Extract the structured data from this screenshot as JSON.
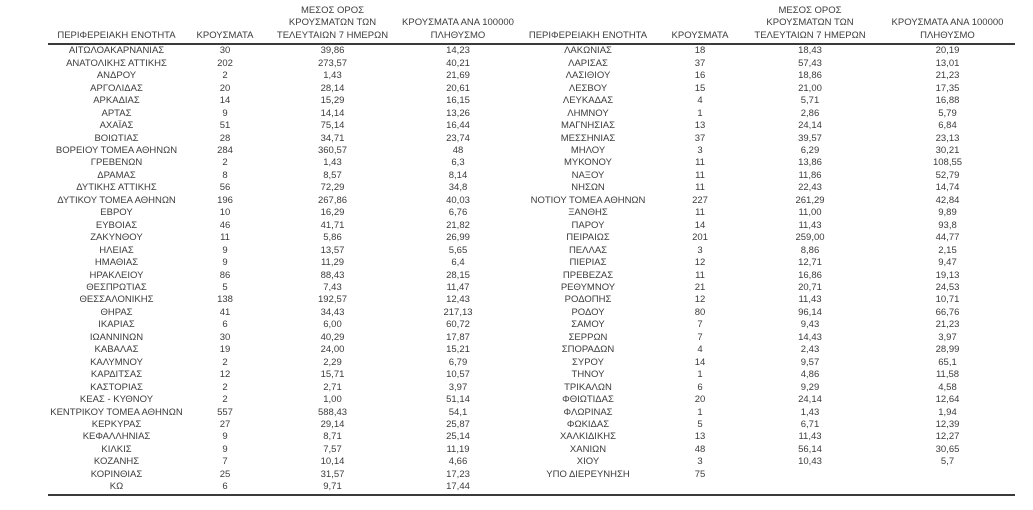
{
  "table": {
    "headers": {
      "region": "ΠΕΡΙΦΕΡΕΙΑΚΗ ΕΝΟΤΗΤΑ",
      "cases": "ΚΡΟΥΣΜΑΤΑ",
      "avg7_lines": [
        "ΜΕΣΟΣ ΟΡΟΣ",
        "ΚΡΟΥΣΜΑΤΩΝ ΤΩΝ",
        "ΤΕΛΕΥΤΑΙΩΝ 7 ΗΜΕΡΩΝ"
      ],
      "per100k_lines": [
        "ΚΡΟΥΣΜΑΤΑ ΑΝΑ 100000",
        "ΠΛΗΘΥΣΜΟ"
      ]
    },
    "left_rows": [
      [
        "ΑΙΤΩΛΟΑΚΑΡΝΑΝΙΑΣ",
        "30",
        "39,86",
        "14,23"
      ],
      [
        "ΑΝΑΤΟΛΙΚΗΣ ΑΤΤΙΚΗΣ",
        "202",
        "273,57",
        "40,21"
      ],
      [
        "ΑΝΔΡΟΥ",
        "2",
        "1,43",
        "21,69"
      ],
      [
        "ΑΡΓΟΛΙΔΑΣ",
        "20",
        "28,14",
        "20,61"
      ],
      [
        "ΑΡΚΑΔΙΑΣ",
        "14",
        "15,29",
        "16,15"
      ],
      [
        "ΑΡΤΑΣ",
        "9",
        "14,14",
        "13,26"
      ],
      [
        "ΑΧΑΪΑΣ",
        "51",
        "75,14",
        "16,44"
      ],
      [
        "ΒΟΙΩΤΙΑΣ",
        "28",
        "34,71",
        "23,74"
      ],
      [
        "ΒΟΡΕΙΟΥ ΤΟΜΕΑ ΑΘΗΝΩΝ",
        "284",
        "360,57",
        "48"
      ],
      [
        "ΓΡΕΒΕΝΩΝ",
        "2",
        "1,43",
        "6,3"
      ],
      [
        "ΔΡΑΜΑΣ",
        "8",
        "8,57",
        "8,14"
      ],
      [
        "ΔΥΤΙΚΗΣ ΑΤΤΙΚΗΣ",
        "56",
        "72,29",
        "34,8"
      ],
      [
        "ΔΥΤΙΚΟΥ ΤΟΜΕΑ ΑΘΗΝΩΝ",
        "196",
        "267,86",
        "40,03"
      ],
      [
        "ΕΒΡΟΥ",
        "10",
        "16,29",
        "6,76"
      ],
      [
        "ΕΥΒΟΙΑΣ",
        "46",
        "41,71",
        "21,82"
      ],
      [
        "ΖΑΚΥΝΘΟΥ",
        "11",
        "5,86",
        "26,99"
      ],
      [
        "ΗΛΕΙΑΣ",
        "9",
        "13,57",
        "5,65"
      ],
      [
        "ΗΜΑΘΙΑΣ",
        "9",
        "11,29",
        "6,4"
      ],
      [
        "ΗΡΑΚΛΕΙΟΥ",
        "86",
        "88,43",
        "28,15"
      ],
      [
        "ΘΕΣΠΡΩΤΙΑΣ",
        "5",
        "7,43",
        "11,47"
      ],
      [
        "ΘΕΣΣΑΛΟΝΙΚΗΣ",
        "138",
        "192,57",
        "12,43"
      ],
      [
        "ΘΗΡΑΣ",
        "41",
        "34,43",
        "217,13"
      ],
      [
        "ΙΚΑΡΙΑΣ",
        "6",
        "6,00",
        "60,72"
      ],
      [
        "ΙΩΑΝΝΙΝΩΝ",
        "30",
        "40,29",
        "17,87"
      ],
      [
        "ΚΑΒΑΛΑΣ",
        "19",
        "24,00",
        "15,21"
      ],
      [
        "ΚΑΛΥΜΝΟΥ",
        "2",
        "2,29",
        "6,79"
      ],
      [
        "ΚΑΡΔΙΤΣΑΣ",
        "12",
        "15,71",
        "10,57"
      ],
      [
        "ΚΑΣΤΟΡΙΑΣ",
        "2",
        "2,71",
        "3,97"
      ],
      [
        "ΚΕΑΣ - ΚΥΘΝΟΥ",
        "2",
        "1,00",
        "51,14"
      ],
      [
        "ΚΕΝΤΡΙΚΟΥ ΤΟΜΕΑ ΑΘΗΝΩΝ",
        "557",
        "588,43",
        "54,1"
      ],
      [
        "ΚΕΡΚΥΡΑΣ",
        "27",
        "29,14",
        "25,87"
      ],
      [
        "ΚΕΦΑΛΛΗΝΙΑΣ",
        "9",
        "8,71",
        "25,14"
      ],
      [
        "ΚΙΛΚΙΣ",
        "9",
        "7,57",
        "11,19"
      ],
      [
        "ΚΟΖΑΝΗΣ",
        "7",
        "10,14",
        "4,66"
      ],
      [
        "ΚΟΡΙΝΘΙΑΣ",
        "25",
        "31,57",
        "17,23"
      ],
      [
        "ΚΩ",
        "6",
        "9,71",
        "17,44"
      ]
    ],
    "right_rows": [
      [
        "ΛΑΚΩΝΙΑΣ",
        "18",
        "18,43",
        "20,19"
      ],
      [
        "ΛΑΡΙΣΑΣ",
        "37",
        "57,43",
        "13,01"
      ],
      [
        "ΛΑΣΙΘΙΟΥ",
        "16",
        "18,86",
        "21,23"
      ],
      [
        "ΛΕΣΒΟΥ",
        "15",
        "21,00",
        "17,35"
      ],
      [
        "ΛΕΥΚΑΔΑΣ",
        "4",
        "5,71",
        "16,88"
      ],
      [
        "ΛΗΜΝΟΥ",
        "1",
        "2,86",
        "5,79"
      ],
      [
        "ΜΑΓΝΗΣΙΑΣ",
        "13",
        "24,14",
        "6,84"
      ],
      [
        "ΜΕΣΣΗΝΙΑΣ",
        "37",
        "39,57",
        "23,13"
      ],
      [
        "ΜΗΛΟΥ",
        "3",
        "6,29",
        "30,21"
      ],
      [
        "ΜΥΚΟΝΟΥ",
        "11",
        "13,86",
        "108,55"
      ],
      [
        "ΝΑΞΟΥ",
        "11",
        "11,86",
        "52,79"
      ],
      [
        "ΝΗΣΩΝ",
        "11",
        "22,43",
        "14,74"
      ],
      [
        "ΝΟΤΙΟΥ ΤΟΜΕΑ ΑΘΗΝΩΝ",
        "227",
        "261,29",
        "42,84"
      ],
      [
        "ΞΑΝΘΗΣ",
        "11",
        "11,00",
        "9,89"
      ],
      [
        "ΠΑΡΟΥ",
        "14",
        "11,43",
        "93,8"
      ],
      [
        "ΠΕΙΡΑΙΩΣ",
        "201",
        "259,00",
        "44,77"
      ],
      [
        "ΠΕΛΛΑΣ",
        "3",
        "8,86",
        "2,15"
      ],
      [
        "ΠΙΕΡΙΑΣ",
        "12",
        "12,71",
        "9,47"
      ],
      [
        "ΠΡΕΒΕΖΑΣ",
        "11",
        "16,86",
        "19,13"
      ],
      [
        "ΡΕΘΥΜΝΟΥ",
        "21",
        "20,71",
        "24,53"
      ],
      [
        "ΡΟΔΟΠΗΣ",
        "12",
        "11,43",
        "10,71"
      ],
      [
        "ΡΟΔΟΥ",
        "80",
        "96,14",
        "66,76"
      ],
      [
        "ΣΑΜΟΥ",
        "7",
        "9,43",
        "21,23"
      ],
      [
        "ΣΕΡΡΩΝ",
        "7",
        "14,43",
        "3,97"
      ],
      [
        "ΣΠΟΡΑΔΩΝ",
        "4",
        "2,43",
        "28,99"
      ],
      [
        "ΣΥΡΟΥ",
        "14",
        "9,57",
        "65,1"
      ],
      [
        "ΤΗΝΟΥ",
        "1",
        "4,86",
        "11,58"
      ],
      [
        "ΤΡΙΚΑΛΩΝ",
        "6",
        "9,29",
        "4,58"
      ],
      [
        "ΦΘΙΩΤΙΔΑΣ",
        "20",
        "24,14",
        "12,64"
      ],
      [
        "ΦΛΩΡΙΝΑΣ",
        "1",
        "1,43",
        "1,94"
      ],
      [
        "ΦΩΚΙΔΑΣ",
        "5",
        "6,71",
        "12,39"
      ],
      [
        "ΧΑΛΚΙΔΙΚΗΣ",
        "13",
        "11,43",
        "12,27"
      ],
      [
        "ΧΑΝΙΩΝ",
        "48",
        "56,14",
        "30,65"
      ],
      [
        "ΧΙΟΥ",
        "3",
        "10,43",
        "5,7"
      ],
      [
        "ΥΠΟ ΔΙΕΡΕΥΝΗΣΗ",
        "75",
        "",
        ""
      ],
      [
        "",
        "",
        "",
        ""
      ]
    ]
  },
  "colors": {
    "text": "#3c3c3c",
    "border": "#3a3a3a",
    "background": "#ffffff"
  }
}
